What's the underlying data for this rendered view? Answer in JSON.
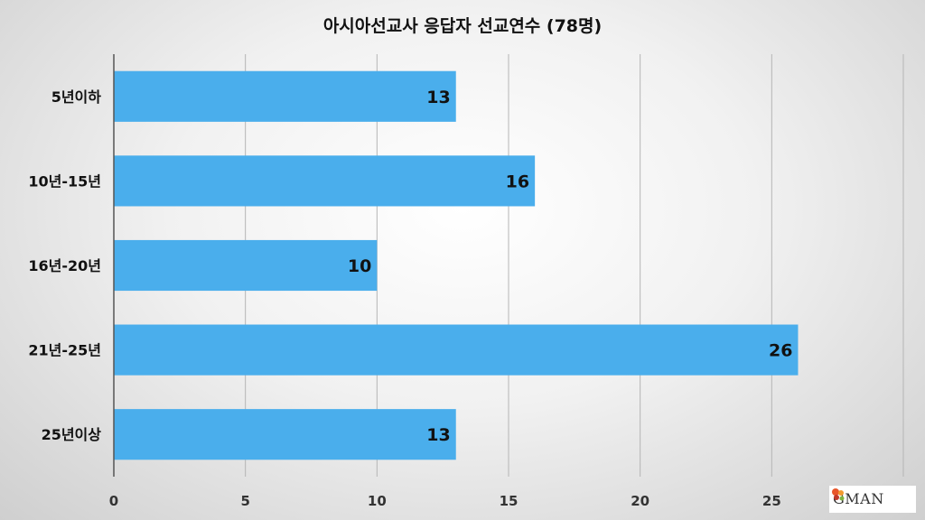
{
  "chart_data": {
    "type": "bar",
    "orientation": "horizontal",
    "title": "아시아선교사 응답자 선교연수 (78명)",
    "categories": [
      "5년이하",
      "10년-15년",
      "16년-20년",
      "21년-25년",
      "25년이상"
    ],
    "values": [
      13,
      16,
      10,
      26,
      13
    ],
    "xlim": [
      0,
      30
    ],
    "xticks": [
      0,
      5,
      10,
      15,
      20,
      25
    ],
    "grid": true,
    "legend": "none",
    "bar_color": "#4aaeec",
    "data_labels": [
      "13",
      "16",
      "10",
      "26",
      "13"
    ]
  },
  "logo": {
    "text": "GMAN"
  }
}
